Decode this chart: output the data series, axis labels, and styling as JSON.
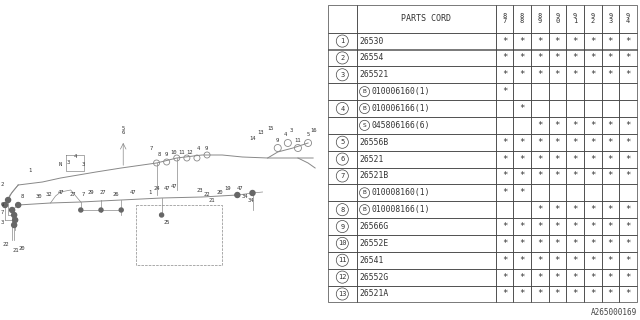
{
  "bg_color": "#ffffff",
  "table_line_color": "#444444",
  "header": {
    "parts_cord": "PARTS CORD",
    "years": [
      "8\n7",
      "8\n8",
      "8\n9",
      "9\n0",
      "9\n1",
      "9\n2",
      "9\n3",
      "9\n4"
    ]
  },
  "rows": [
    {
      "num": "1",
      "prefix": "",
      "code": "26530",
      "stars": [
        1,
        1,
        1,
        1,
        1,
        1,
        1,
        1
      ]
    },
    {
      "num": "2",
      "prefix": "",
      "code": "26554",
      "stars": [
        1,
        1,
        1,
        1,
        1,
        1,
        1,
        1
      ]
    },
    {
      "num": "3",
      "prefix": "",
      "code": "265521",
      "stars": [
        1,
        1,
        1,
        1,
        1,
        1,
        1,
        1
      ]
    },
    {
      "num": "",
      "prefix": "B",
      "code": "010006160(1)",
      "stars": [
        1,
        0,
        0,
        0,
        0,
        0,
        0,
        0
      ]
    },
    {
      "num": "4",
      "prefix": "B",
      "code": "010006166(1)",
      "stars": [
        0,
        1,
        0,
        0,
        0,
        0,
        0,
        0
      ]
    },
    {
      "num": "",
      "prefix": "S",
      "code": "045806166(6)",
      "stars": [
        0,
        0,
        1,
        1,
        1,
        1,
        1,
        1
      ]
    },
    {
      "num": "5",
      "prefix": "",
      "code": "26556B",
      "stars": [
        1,
        1,
        1,
        1,
        1,
        1,
        1,
        1
      ]
    },
    {
      "num": "6",
      "prefix": "",
      "code": "26521",
      "stars": [
        1,
        1,
        1,
        1,
        1,
        1,
        1,
        1
      ]
    },
    {
      "num": "7",
      "prefix": "",
      "code": "26521B",
      "stars": [
        1,
        1,
        1,
        1,
        1,
        1,
        1,
        1
      ]
    },
    {
      "num": "",
      "prefix": "B",
      "code": "010008160(1)",
      "stars": [
        1,
        1,
        0,
        0,
        0,
        0,
        0,
        0
      ]
    },
    {
      "num": "8",
      "prefix": "B",
      "code": "010008166(1)",
      "stars": [
        0,
        0,
        1,
        1,
        1,
        1,
        1,
        1
      ]
    },
    {
      "num": "9",
      "prefix": "",
      "code": "26566G",
      "stars": [
        1,
        1,
        1,
        1,
        1,
        1,
        1,
        1
      ]
    },
    {
      "num": "10",
      "prefix": "",
      "code": "26552E",
      "stars": [
        1,
        1,
        1,
        1,
        1,
        1,
        1,
        1
      ]
    },
    {
      "num": "11",
      "prefix": "",
      "code": "26541",
      "stars": [
        1,
        1,
        1,
        1,
        1,
        1,
        1,
        1
      ]
    },
    {
      "num": "12",
      "prefix": "",
      "code": "26552G",
      "stars": [
        1,
        1,
        1,
        1,
        1,
        1,
        1,
        1
      ]
    },
    {
      "num": "13",
      "prefix": "",
      "code": "26521A",
      "stars": [
        1,
        1,
        1,
        1,
        1,
        1,
        1,
        1
      ]
    }
  ],
  "footer_code": "A265000169",
  "font_color": "#333333"
}
